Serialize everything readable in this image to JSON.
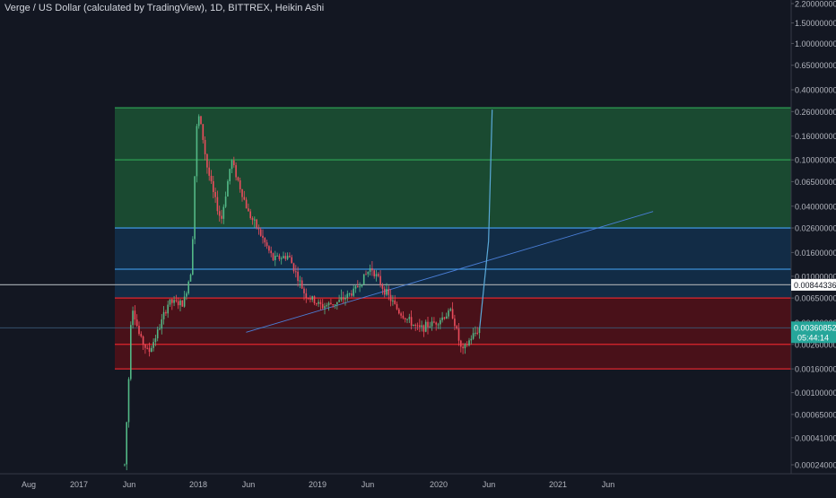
{
  "header": {
    "title": "Verge / US Dollar (calculated by TradingView), 1D, BITTREX, Heikin Ashi"
  },
  "colors": {
    "background": "#131722",
    "axis_text": "#b2b5be",
    "candle_up": "#53b987",
    "candle_down": "#eb4d5c",
    "zone_green": "#1e6b3a",
    "zone_blue": "#123a5c",
    "zone_red": "#6a0f14",
    "last_price_badge": "#26a69a",
    "reference_badge": "#ffffff"
  },
  "chart_data": {
    "type": "candlestick",
    "y_scale": "log",
    "x_tick_labels": [
      "Aug",
      "2017",
      "Jun",
      "2018",
      "Jun",
      "2019",
      "Jun",
      "2020",
      "Jun",
      "2021",
      "Jun"
    ],
    "y_tick_labels": [
      "2.20000000",
      "1.50000000",
      "1.00000000",
      "0.65000000",
      "0.40000000",
      "0.26000000",
      "0.16000000",
      "0.10000000",
      "0.06500000",
      "0.04000000",
      "0.02600000",
      "0.01600000",
      "0.01000000",
      "0.00650000",
      "0.00400000",
      "0.00260000",
      "0.00160000",
      "0.00100000",
      "0.00065000",
      "0.00041000",
      "0.00024000"
    ],
    "y_tick_values": [
      2.2,
      1.5,
      1.0,
      0.65,
      0.4,
      0.26,
      0.16,
      0.1,
      0.065,
      0.04,
      0.026,
      0.016,
      0.01,
      0.0065,
      0.004,
      0.0026,
      0.0016,
      0.001,
      0.00065,
      0.00041,
      0.00024
    ],
    "zones": [
      {
        "color": "green",
        "top": 0.28,
        "bottom": 0.026
      },
      {
        "color": "blue",
        "top": 0.026,
        "bottom": 0.0065
      },
      {
        "color": "red",
        "top": 0.0065,
        "bottom": 0.0016
      }
    ],
    "zone_lines": [
      0.28,
      0.1,
      0.026,
      0.0115,
      0.0065,
      0.0026,
      0.0016
    ],
    "price_labels": {
      "reference_line": "0.00844336",
      "last_price": "0.00360852",
      "countdown": "05:44:14"
    },
    "price_path": [
      [
        "2017-05-20",
        0.00024
      ],
      [
        "2017-06-01",
        0.0012
      ],
      [
        "2017-06-10",
        0.006
      ],
      [
        "2017-07-05",
        0.003
      ],
      [
        "2017-08-01",
        0.0022
      ],
      [
        "2017-09-01",
        0.0035
      ],
      [
        "2017-10-01",
        0.006
      ],
      [
        "2017-11-15",
        0.0058
      ],
      [
        "2017-12-10",
        0.012
      ],
      [
        "2017-12-20",
        0.08
      ],
      [
        "2017-12-28",
        0.26
      ],
      [
        "2018-01-10",
        0.18
      ],
      [
        "2018-01-25",
        0.09
      ],
      [
        "2018-02-15",
        0.05
      ],
      [
        "2018-03-10",
        0.03
      ],
      [
        "2018-04-10",
        0.1
      ],
      [
        "2018-05-05",
        0.06
      ],
      [
        "2018-06-01",
        0.035
      ],
      [
        "2018-07-01",
        0.025
      ],
      [
        "2018-08-15",
        0.014
      ],
      [
        "2018-10-01",
        0.015
      ],
      [
        "2018-11-20",
        0.007
      ],
      [
        "2019-01-10",
        0.0055
      ],
      [
        "2019-03-01",
        0.006
      ],
      [
        "2019-04-20",
        0.0075
      ],
      [
        "2019-06-10",
        0.012
      ],
      [
        "2019-07-15",
        0.008
      ],
      [
        "2019-09-01",
        0.005
      ],
      [
        "2019-11-01",
        0.0035
      ],
      [
        "2019-12-20",
        0.004
      ],
      [
        "2020-02-10",
        0.005
      ],
      [
        "2020-03-12",
        0.0022
      ],
      [
        "2020-04-10",
        0.003
      ],
      [
        "2020-05-05",
        0.0036
      ]
    ],
    "projection_path": [
      [
        "2020-05-05",
        0.0036
      ],
      [
        "2020-06-01",
        0.02
      ],
      [
        "2020-06-12",
        0.27
      ]
    ],
    "trendline": [
      [
        "2018-05-25",
        0.0033
      ],
      [
        "2021-10-15",
        0.036
      ]
    ],
    "horizontal_lines": [
      0.00844336,
      0.00360852
    ]
  }
}
